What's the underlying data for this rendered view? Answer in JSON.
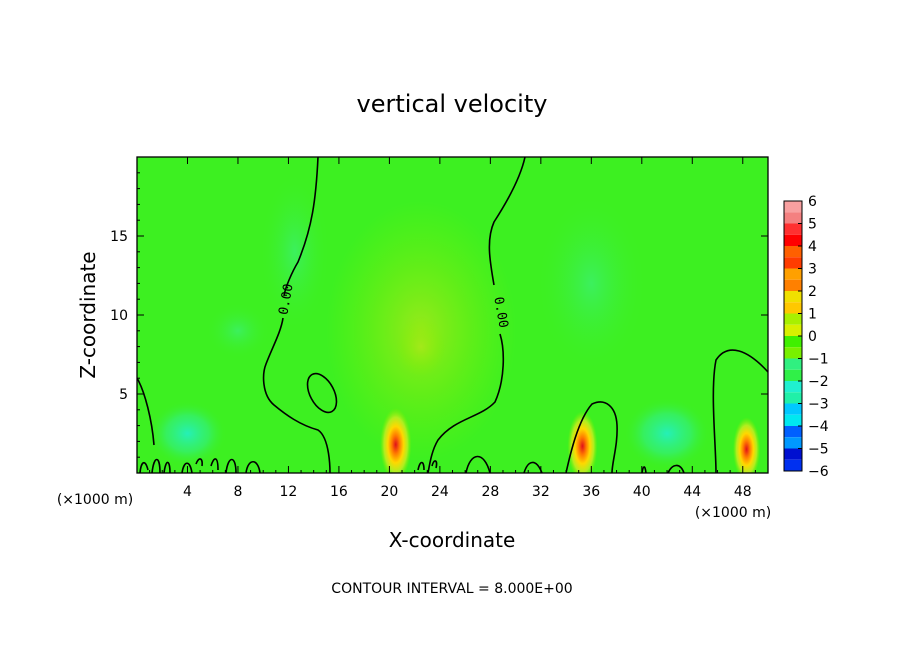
{
  "chart_data": {
    "type": "heatmap",
    "title": "vertical velocity",
    "xlabel": "X-coordinate",
    "ylabel": "Z-coordinate",
    "x_unit": "(×1000 m)",
    "y_unit": "(×1000 m)",
    "xlim": [
      0,
      50
    ],
    "ylim": [
      0,
      20
    ],
    "xticks": [
      4,
      8,
      12,
      16,
      20,
      24,
      28,
      32,
      36,
      40,
      44,
      48
    ],
    "yticks": [
      5,
      10,
      15
    ],
    "footer": "CONTOUR INTERVAL = 8.000E+00",
    "contour_label": "0.00",
    "colorbar": {
      "min": -6,
      "max": 6,
      "levels": [
        6,
        5,
        4,
        3,
        2,
        1,
        0,
        -1,
        -2,
        -3,
        -4,
        -5,
        -6
      ],
      "tick_labels": [
        "6",
        "5",
        "4",
        "3",
        "2",
        "1",
        "0",
        "−1",
        "−2",
        "−3",
        "−4",
        "−5",
        "−6"
      ]
    },
    "features": [
      {
        "kind": "updraft",
        "x": 20.5,
        "z": 1.8,
        "w": 5.5
      },
      {
        "kind": "updraft",
        "x": 35.3,
        "z": 1.7,
        "w": 5.0
      },
      {
        "kind": "updraft",
        "x": 48.3,
        "z": 1.5,
        "w": 4.0
      },
      {
        "kind": "updraft",
        "x": 22.5,
        "z": 8.0,
        "w": 1.5
      },
      {
        "kind": "downdraft",
        "x": 4.0,
        "z": 2.5,
        "w": -1.5
      },
      {
        "kind": "downdraft",
        "x": 42.0,
        "z": 2.5,
        "w": -1.8
      },
      {
        "kind": "downdraft",
        "x": 8.0,
        "z": 9.0,
        "w": -1.0
      }
    ]
  }
}
